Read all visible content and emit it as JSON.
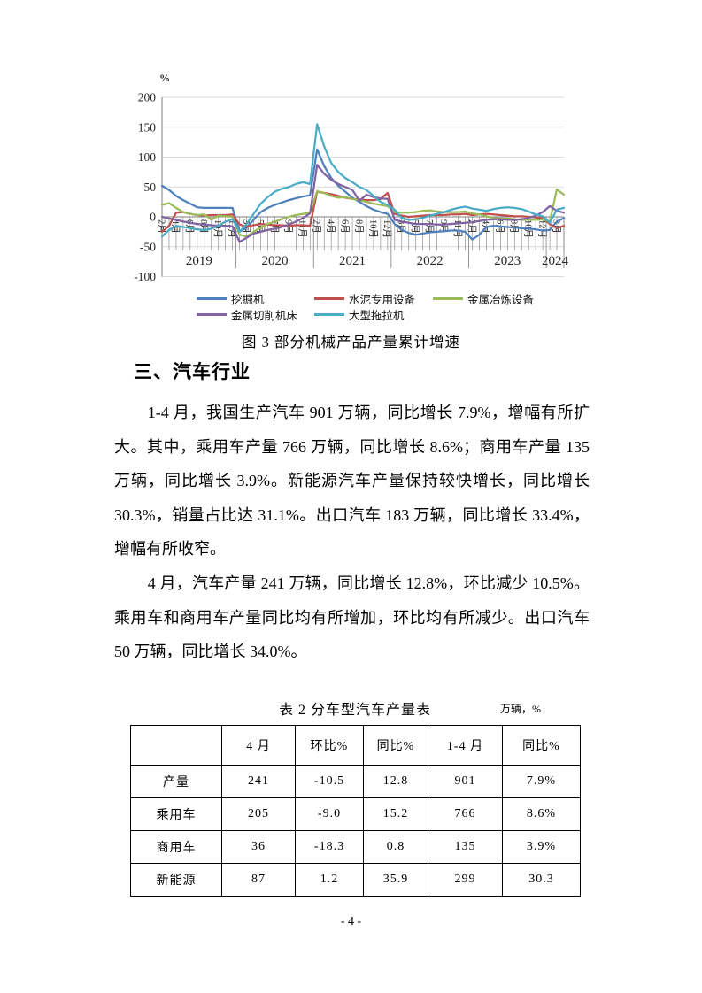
{
  "figure": {
    "caption": "图 3 部分机械产品产量累计增速",
    "chart_data": {
      "type": "line",
      "ylabel": "%",
      "ylim": [
        -100,
        200
      ],
      "yticks": [
        200,
        150,
        100,
        50,
        0,
        -50,
        -100
      ],
      "tick_suffix": "月",
      "grid": "horizontal",
      "legend_position": "bottom",
      "years": [
        {
          "label": "2019",
          "months": [
            2,
            3,
            4,
            5,
            6,
            7,
            8,
            9,
            10,
            11,
            12
          ]
        },
        {
          "label": "2020",
          "months": [
            2,
            3,
            4,
            5,
            6,
            7,
            8,
            9,
            10,
            11,
            12
          ]
        },
        {
          "label": "2021",
          "months": [
            2,
            3,
            4,
            5,
            6,
            7,
            8,
            9,
            10,
            11,
            12
          ]
        },
        {
          "label": "2022",
          "months": [
            2,
            3,
            4,
            5,
            6,
            7,
            8,
            9,
            10,
            11,
            12
          ]
        },
        {
          "label": "2023",
          "months": [
            2,
            3,
            4,
            5,
            6,
            7,
            8,
            9,
            10,
            11,
            12
          ]
        },
        {
          "label": "2024",
          "months": [
            2,
            3,
            4
          ]
        }
      ],
      "series": [
        {
          "name": "挖掘机",
          "color": "#4F81BD",
          "values": [
            52,
            45,
            35,
            28,
            22,
            16,
            15,
            15,
            15,
            15,
            15,
            -25,
            -18,
            -5,
            8,
            15,
            20,
            24,
            28,
            31,
            34,
            36,
            113,
            85,
            65,
            52,
            42,
            32,
            25,
            18,
            12,
            8,
            5,
            -12,
            -22,
            -27,
            -30,
            -28,
            -26,
            -25,
            -24,
            -23,
            -23,
            -25,
            -38,
            -30,
            -17,
            -15,
            -16,
            -17,
            -18,
            -19,
            -20,
            -21,
            -23,
            -22,
            -8,
            -2
          ]
        },
        {
          "name": "水泥专用设备",
          "color": "#C0504D",
          "values": [
            -25,
            -15,
            7,
            8,
            5,
            3,
            2,
            3,
            3,
            3,
            4,
            -13,
            -16,
            -14,
            -12,
            -13,
            -14,
            -14,
            -15,
            -14,
            -14,
            -15,
            42,
            40,
            38,
            35,
            32,
            30,
            29,
            28,
            28,
            30,
            40,
            5,
            2,
            0,
            1,
            2,
            3,
            3,
            3,
            4,
            4,
            5,
            3,
            4,
            5,
            4,
            3,
            2,
            1,
            1,
            0,
            -1,
            -2,
            -12,
            -19,
            -15
          ]
        },
        {
          "name": "金属冶炼设备",
          "color": "#9BBB59",
          "values": [
            20,
            23,
            15,
            8,
            5,
            3,
            4,
            -5,
            2,
            1,
            0,
            -30,
            -33,
            -25,
            -18,
            -12,
            -8,
            -4,
            0,
            3,
            5,
            7,
            43,
            40,
            35,
            32,
            33,
            30,
            28,
            25,
            22,
            20,
            18,
            8,
            7,
            7,
            8,
            10,
            11,
            9,
            8,
            8,
            8,
            9,
            6,
            4,
            1,
            -2,
            -3,
            -3,
            -4,
            -5,
            -5,
            -5,
            -4,
            -8,
            46,
            37
          ]
        },
        {
          "name": "金属切削机床",
          "color": "#8064A2",
          "values": [
            0,
            -3,
            -5,
            -8,
            -10,
            -12,
            -13,
            -14,
            -15,
            -15,
            -16,
            -42,
            -35,
            -28,
            -25,
            -22,
            -20,
            -17,
            -13,
            -8,
            -2,
            6,
            87,
            72,
            62,
            55,
            50,
            45,
            27,
            37,
            33,
            31,
            30,
            -5,
            -8,
            -10,
            -12,
            -12,
            -12,
            -13,
            -13,
            -12,
            -11,
            -10,
            -9,
            -7,
            -5,
            -4,
            -4,
            -5,
            -5,
            -4,
            -2,
            2,
            8,
            18,
            10,
            7
          ]
        },
        {
          "name": "大型拖拉机",
          "color": "#4BACC6",
          "values": [
            -33,
            -22,
            -15,
            -17,
            -19,
            -21,
            -22,
            -20,
            -15,
            -8,
            -4,
            -25,
            -12,
            5,
            22,
            33,
            42,
            47,
            50,
            55,
            58,
            55,
            155,
            118,
            90,
            75,
            65,
            58,
            50,
            45,
            35,
            25,
            20,
            12,
            -2,
            -5,
            -4,
            -2,
            2,
            5,
            8,
            12,
            15,
            17,
            14,
            12,
            10,
            13,
            15,
            16,
            15,
            13,
            9,
            4,
            1,
            -10,
            12,
            15
          ]
        }
      ]
    }
  },
  "section": {
    "heading": "三、汽车行业",
    "paragraphs": [
      "1-4 月，我国生产汽车 901 万辆，同比增长 7.9%，增幅有所扩大。其中，乘用车产量 766 万辆，同比增长 8.6%；商用车产量 135 万辆，同比增长 3.9%。新能源汽车产量保持较快增长，同比增长 30.3%，销量占比达 31.1%。出口汽车 183 万辆，同比增长 33.4%，增幅有所收窄。",
      "4 月，汽车产量 241 万辆，同比增长 12.8%，环比减少 10.5%。乘用车和商用车产量同比均有所增加，环比均有所减少。出口汽车 50 万辆，同比增长 34.0%。"
    ]
  },
  "table": {
    "title": "表 2 分车型汽车产量表",
    "unit": "万辆，%",
    "headers": [
      "",
      "4 月",
      "环比%",
      "同比%",
      "1-4 月",
      "同比%"
    ],
    "rows": [
      [
        "产量",
        "241",
        "-10.5",
        "12.8",
        "901",
        "7.9%"
      ],
      [
        "乘用车",
        "205",
        "-9.0",
        "15.2",
        "766",
        "8.6%"
      ],
      [
        "商用车",
        "36",
        "-18.3",
        "0.8",
        "135",
        "3.9%"
      ],
      [
        "新能源",
        "87",
        "1.2",
        "35.9",
        "299",
        "30.3"
      ]
    ]
  },
  "footer": {
    "page_number": "- 4 -"
  }
}
